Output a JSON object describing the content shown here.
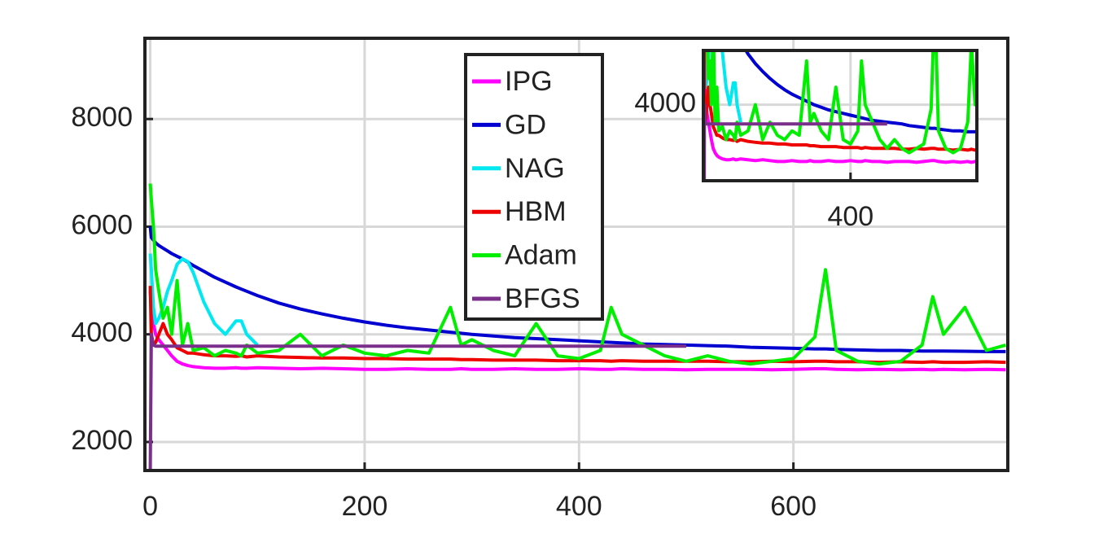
{
  "chart_data": {
    "type": "line",
    "x": [
      0,
      1,
      3,
      5,
      8,
      12,
      16,
      20,
      25,
      30,
      35,
      40,
      50,
      60,
      70,
      80,
      85,
      90,
      100,
      120,
      140,
      160,
      180,
      200,
      220,
      240,
      260,
      280,
      290,
      300,
      320,
      340,
      360,
      380,
      400,
      420,
      430,
      440,
      460,
      480,
      500,
      520,
      540,
      560,
      580,
      600,
      620,
      630,
      640,
      660,
      680,
      700,
      720,
      730,
      740,
      760,
      780,
      798
    ],
    "series": [
      {
        "name": "IPG",
        "color": "#ff00ff",
        "values": [
          4800,
          4500,
          4200,
          4000,
          3900,
          3800,
          3700,
          3600,
          3500,
          3450,
          3420,
          3400,
          3380,
          3370,
          3370,
          3380,
          3370,
          3370,
          3380,
          3370,
          3360,
          3370,
          3360,
          3350,
          3350,
          3360,
          3350,
          3350,
          3360,
          3350,
          3350,
          3360,
          3350,
          3350,
          3360,
          3350,
          3350,
          3360,
          3350,
          3350,
          3340,
          3350,
          3350,
          3350,
          3340,
          3350,
          3360,
          3360,
          3350,
          3340,
          3350,
          3340,
          3350,
          3340,
          3350,
          3340,
          3350,
          3340
        ]
      },
      {
        "name": "GD",
        "color": "#0000d0",
        "values": [
          6000,
          5800,
          5750,
          5700,
          5650,
          5600,
          5550,
          5500,
          5450,
          5400,
          5340,
          5280,
          5170,
          5060,
          4970,
          4880,
          4840,
          4800,
          4720,
          4580,
          4470,
          4380,
          4300,
          4230,
          4170,
          4120,
          4080,
          4040,
          4020,
          4000,
          3970,
          3940,
          3920,
          3900,
          3880,
          3860,
          3850,
          3840,
          3820,
          3810,
          3800,
          3790,
          3780,
          3760,
          3750,
          3740,
          3730,
          3730,
          3720,
          3710,
          3700,
          3700,
          3690,
          3690,
          3690,
          3685,
          3680,
          3680
        ]
      },
      {
        "name": "NAG",
        "color": "#00e8f0",
        "values": [
          5500,
          5200,
          4500,
          4200,
          4300,
          4500,
          4800,
          5000,
          5300,
          5400,
          5350,
          5150,
          4600,
          4200,
          4000,
          4250,
          4250,
          4000,
          3800,
          null,
          null,
          null,
          null,
          null,
          null,
          null,
          null,
          null,
          null,
          null,
          null,
          null,
          null,
          null,
          null,
          null,
          null,
          null,
          null,
          null,
          null,
          null,
          null,
          null,
          null,
          null,
          null,
          null,
          null,
          null,
          null,
          null,
          null,
          null,
          null,
          null,
          null,
          null
        ]
      },
      {
        "name": "HBM",
        "color": "#ee0000",
        "values": [
          4900,
          4000,
          3800,
          3850,
          4000,
          4200,
          4000,
          3900,
          3750,
          3700,
          3650,
          3650,
          3620,
          3600,
          3600,
          3590,
          3600,
          3580,
          3600,
          3580,
          3570,
          3560,
          3560,
          3550,
          3550,
          3540,
          3540,
          3540,
          3530,
          3530,
          3520,
          3520,
          3520,
          3510,
          3510,
          3510,
          3500,
          3510,
          3500,
          3500,
          3500,
          3500,
          3490,
          3490,
          3500,
          3490,
          3500,
          3500,
          3490,
          3490,
          3480,
          3490,
          3480,
          3490,
          3480,
          3480,
          3490,
          3480
        ]
      },
      {
        "name": "Adam",
        "color": "#00ee00",
        "values": [
          6800,
          6500,
          6000,
          5200,
          4800,
          4300,
          4500,
          4000,
          5000,
          3800,
          4200,
          3700,
          3750,
          3600,
          3700,
          3650,
          3600,
          3800,
          3650,
          3700,
          4000,
          3600,
          3800,
          3650,
          3600,
          3700,
          3650,
          4500,
          3800,
          3900,
          3700,
          3600,
          4200,
          3600,
          3550,
          3700,
          4500,
          4000,
          3800,
          3600,
          3500,
          3600,
          3500,
          3450,
          3500,
          3550,
          3950,
          5200,
          3700,
          3500,
          3450,
          3500,
          3800,
          4700,
          4000,
          4500,
          3700,
          3800
        ]
      },
      {
        "name": "BFGS",
        "color": "#7a2f8a",
        "values": [
          1500,
          4000,
          3800,
          3780,
          3780,
          3780,
          3780,
          3780,
          3780,
          3780,
          3780,
          3780,
          3780,
          3780,
          3780,
          3780,
          3780,
          3780,
          3780,
          3780,
          3780,
          3780,
          3780,
          3780,
          3780,
          3780,
          3780,
          3780,
          3780,
          3780,
          3780,
          3780,
          3780,
          3780,
          3780,
          3780,
          3780,
          3780,
          3780,
          3780,
          3780,
          null,
          null,
          null,
          null,
          null,
          null,
          null,
          null,
          null,
          null,
          null,
          null,
          null,
          null,
          null,
          null,
          null
        ]
      }
    ],
    "xlim": [
      -5,
      800
    ],
    "ylim": [
      1470,
      9500
    ],
    "xticks": [
      0,
      200,
      400,
      600
    ],
    "yticks": [
      2000,
      4000,
      6000,
      8000
    ],
    "grid": true,
    "inset": {
      "xlim": [
        -2,
        745
      ],
      "ylim": [
        3130,
        4620
      ],
      "xticks": [
        400
      ],
      "yticks": [
        4000
      ]
    }
  }
}
